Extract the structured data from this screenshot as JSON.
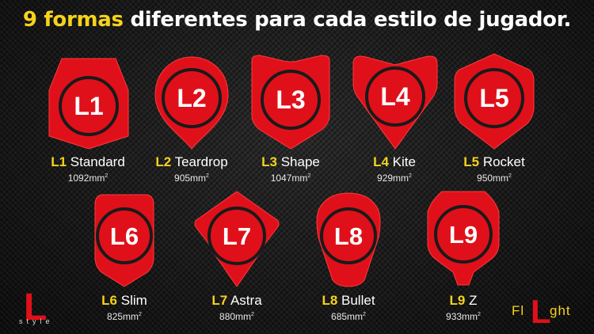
{
  "title": {
    "accent": "9 formas",
    "rest": " diferentes para cada estilo de jugador."
  },
  "colors": {
    "accent": "#f5d31c",
    "shape_red": "#e0101a",
    "ring_dark": "#1a1a1a"
  },
  "shapes": [
    {
      "code": "L1",
      "name": "Standard",
      "area": "1092mm",
      "sup": "2",
      "icon": "standard-flight-icon"
    },
    {
      "code": "L2",
      "name": "Teardrop",
      "area": "905mm",
      "sup": "2",
      "icon": "teardrop-flight-icon"
    },
    {
      "code": "L3",
      "name": "Shape",
      "area": "1047mm",
      "sup": "2",
      "icon": "shape-flight-icon"
    },
    {
      "code": "L4",
      "name": "Kite",
      "area": "929mm",
      "sup": "2",
      "icon": "kite-flight-icon"
    },
    {
      "code": "L5",
      "name": "Rocket",
      "area": "950mm",
      "sup": "2",
      "icon": "rocket-flight-icon"
    },
    {
      "code": "L6",
      "name": "Slim",
      "area": "825mm",
      "sup": "2",
      "icon": "slim-flight-icon"
    },
    {
      "code": "L7",
      "name": "Astra",
      "area": "880mm",
      "sup": "2",
      "icon": "astra-flight-icon"
    },
    {
      "code": "L8",
      "name": "Bullet",
      "area": "685mm",
      "sup": "2",
      "icon": "bullet-flight-icon"
    },
    {
      "code": "L9",
      "name": "Z",
      "area": "933mm",
      "sup": "2",
      "icon": "z-flight-icon"
    }
  ],
  "logos": {
    "left": {
      "letter": "L",
      "word": "style"
    },
    "right": {
      "prefix": "Fl",
      "letter": "L",
      "suffix": "ght"
    }
  }
}
